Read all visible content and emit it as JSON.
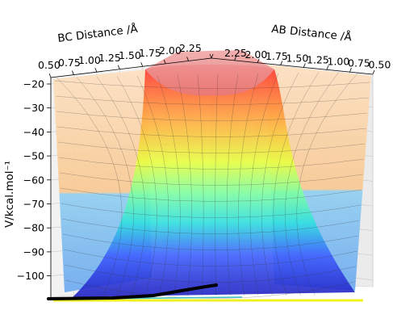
{
  "chart_data": {
    "type": "surface3d",
    "title": "",
    "axes": {
      "ab": {
        "label": "AB Distance /Å",
        "ticks": [
          "2.25",
          "2.00",
          "1.75",
          "1.50",
          "1.25",
          "1.00",
          "0.75",
          "0.50"
        ],
        "range": [
          0.5,
          2.25
        ]
      },
      "bc": {
        "label": "BC Distance /Å",
        "ticks": [
          "0.50",
          "0.75",
          "1.00",
          "1.25",
          "1.50",
          "1.75",
          "2.00",
          "2.25"
        ],
        "range": [
          0.5,
          2.25
        ]
      },
      "v": {
        "label": "V/kcal.mol⁻¹",
        "ticks": [
          "−20",
          "−30",
          "−40",
          "−50",
          "−60",
          "−70",
          "−80",
          "−90",
          "−100"
        ],
        "range": [
          -103,
          -20
        ]
      }
    },
    "surface": {
      "colormap": "jet",
      "description": "potential energy surface with ridge along diagonal, plateau near -20 at large distances",
      "sample_values": [
        {
          "ab": 0.5,
          "bc": 0.5,
          "v": -20
        },
        {
          "ab": 0.75,
          "bc": 2.0,
          "v": -100
        },
        {
          "ab": 2.0,
          "bc": 0.75,
          "v": -100
        },
        {
          "ab": 1.0,
          "bc": 1.0,
          "v": -85
        },
        {
          "ab": 2.25,
          "bc": 2.25,
          "v": -20
        }
      ]
    },
    "trajectory": {
      "color": "#000000",
      "v_start": -100,
      "v_end": -99
    },
    "colors": {
      "walls": "#f2f2f2",
      "grid": "#bbbbbb",
      "background": "#ffffff"
    }
  }
}
